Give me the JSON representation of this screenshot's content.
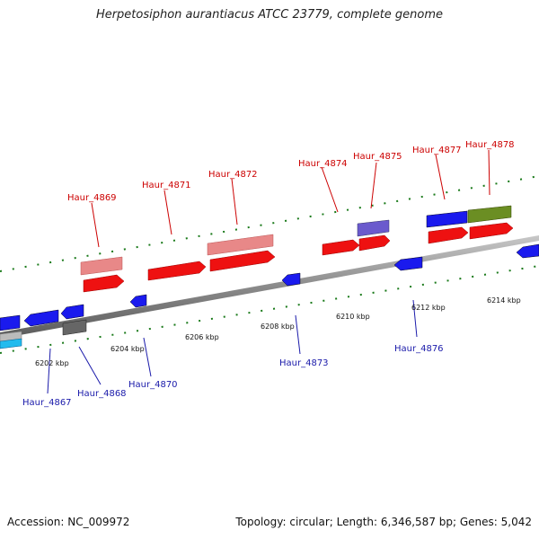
{
  "title": "Herpetosiphon aurantiacus ATCC 23779, complete genome",
  "footer": {
    "accession": "Accession: NC_009972",
    "summary": "Topology: circular; Length: 6,346,587 bp; Genes: 5,042"
  },
  "colors": {
    "forward_label": "#cc0000",
    "reverse_label": "#1a1aaa",
    "gene_red": "#ee1111",
    "gene_pink": "#e88888",
    "gene_blue": "#1a1aee",
    "gene_purple": "#6a5acd",
    "gene_olive": "#6b8e23",
    "gene_gray": "#666666",
    "gene_cyan": "#22bbee",
    "tick_green": "#1a7a1a",
    "backbone": "#888888"
  },
  "ruler_labels": [
    "6202 kbp",
    "6204 kbp",
    "6206 kbp",
    "6208 kbp",
    "6210 kbp",
    "6212 kbp",
    "6214 kbp"
  ],
  "forward_genes": [
    "Haur_4869",
    "Haur_4871",
    "Haur_4872",
    "Haur_4874",
    "Haur_4875",
    "Haur_4877",
    "Haur_4878"
  ],
  "reverse_genes": [
    "Haur_4867",
    "Haur_4868",
    "Haur_4870",
    "Haur_4873",
    "Haur_4876"
  ]
}
